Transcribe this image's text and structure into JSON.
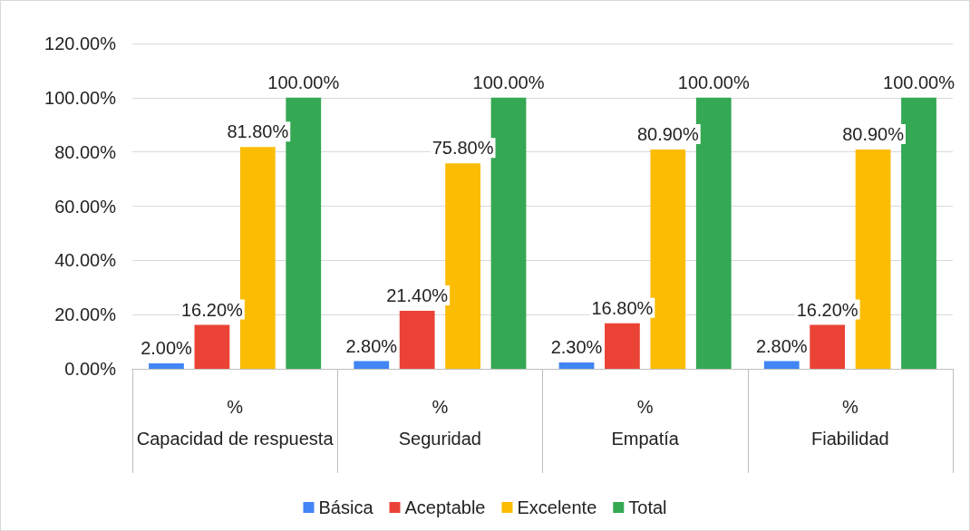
{
  "chart_data": {
    "type": "bar",
    "categories": [
      "Capacidad de respuesta",
      "Seguridad",
      "Empatía",
      "Fiabilidad"
    ],
    "annotations": [
      "%",
      "%",
      "%",
      "%"
    ],
    "series": [
      {
        "name": "Básica",
        "color": "#4285f4",
        "values": [
          2.0,
          2.8,
          2.3,
          2.8
        ],
        "value_labels": [
          "2.00%",
          "2.80%",
          "2.30%",
          "2.80%"
        ]
      },
      {
        "name": "Aceptable",
        "color": "#ea4335",
        "values": [
          16.2,
          21.4,
          16.8,
          16.2
        ],
        "value_labels": [
          "16.20%",
          "21.40%",
          "16.80%",
          "16.20%"
        ]
      },
      {
        "name": "Excelente",
        "color": "#fbbc04",
        "values": [
          81.8,
          75.8,
          80.9,
          80.9
        ],
        "value_labels": [
          "81.80%",
          "75.80%",
          "80.90%",
          "80.90%"
        ]
      },
      {
        "name": "Total",
        "color": "#34a853",
        "values": [
          100,
          100,
          100,
          100
        ],
        "value_labels": [
          "100.00%",
          "100.00%",
          "100.00%",
          "100.00%"
        ]
      }
    ],
    "ylim": [
      0,
      120
    ],
    "yticks": [
      {
        "value": 0,
        "label": "0.00%"
      },
      {
        "value": 20,
        "label": "20.00%"
      },
      {
        "value": 40,
        "label": "40.00%"
      },
      {
        "value": 60,
        "label": "60.00%"
      },
      {
        "value": 80,
        "label": "80.00%"
      },
      {
        "value": 100,
        "label": "100.00%"
      },
      {
        "value": 120,
        "label": "120.00%"
      }
    ],
    "grid": "y",
    "legend": "bottom"
  }
}
